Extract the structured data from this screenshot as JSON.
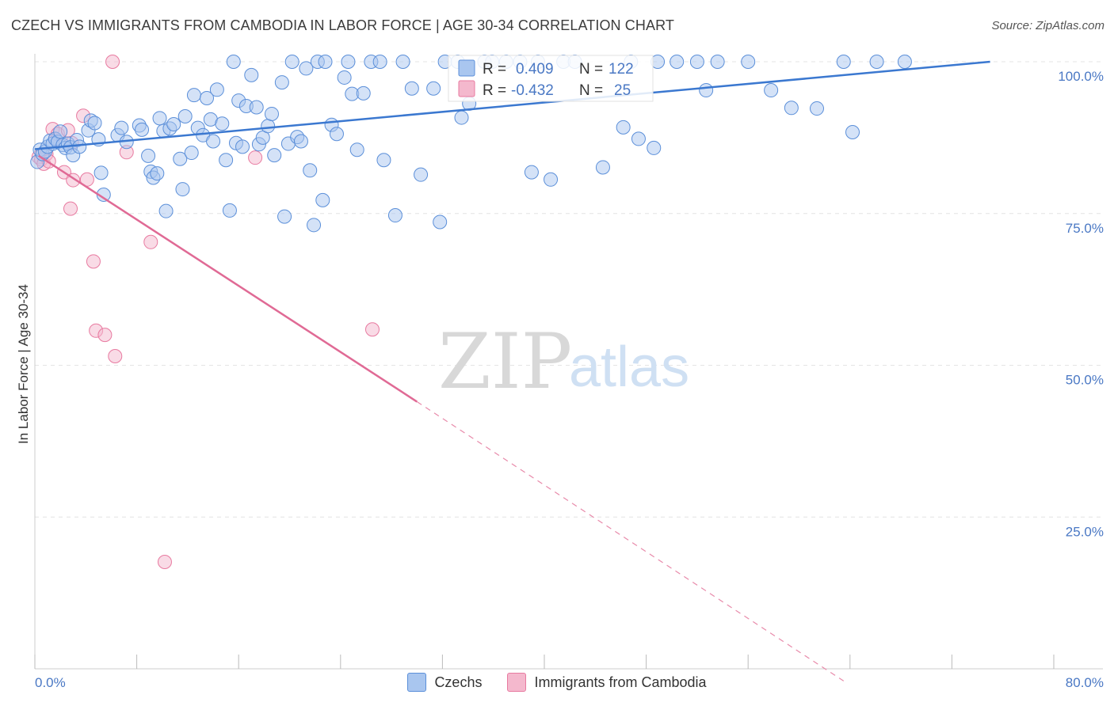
{
  "title": "CZECH VS IMMIGRANTS FROM CAMBODIA IN LABOR FORCE | AGE 30-34 CORRELATION CHART",
  "source": "Source: ZipAtlas.com",
  "watermark": {
    "zip": "ZIP",
    "atlas": "atlas"
  },
  "colors": {
    "blue": "#5b8fd9",
    "blue_fill": "#a9c6ef",
    "pink": "#e87aa0",
    "pink_fill": "#f4b8cd",
    "axis_text": "#4a78c4"
  },
  "legend_box": {
    "rows": [
      {
        "r_label": "R =",
        "r_value": "0.409",
        "n_label": "N =",
        "n_value": "122"
      },
      {
        "r_label": "R =",
        "r_value": "-0.432",
        "n_label": "N =",
        "n_value": "25"
      }
    ]
  },
  "bottom_legend": [
    {
      "label": "Czechs"
    },
    {
      "label": "Immigrants from Cambodia"
    }
  ],
  "chart_data": {
    "type": "scatter",
    "title": "CZECH VS IMMIGRANTS FROM CAMBODIA IN LABOR FORCE | AGE 30-34 CORRELATION CHART",
    "xlabel": "",
    "ylabel": "In Labor Force | Age 30-34",
    "xlim": [
      0,
      80
    ],
    "ylim": [
      0,
      102
    ],
    "x_tick_labels": [
      "0.0%",
      "80.0%"
    ],
    "y_ticks": [
      25,
      50,
      75,
      100
    ],
    "y_tick_labels": [
      "25.0%",
      "50.0%",
      "75.0%",
      "100.0%"
    ],
    "series": [
      {
        "name": "Czechs",
        "color": "#5b8fd9",
        "r": 0.409,
        "n": 122,
        "trendline": {
          "x": [
            0,
            75
          ],
          "y": [
            85.6,
            100
          ],
          "style": "solid"
        },
        "points": [
          [
            0.2,
            83.5
          ],
          [
            0.4,
            85.5
          ],
          [
            0.6,
            84.8
          ],
          [
            0.8,
            85.2
          ],
          [
            1.0,
            86.0
          ],
          [
            1.2,
            87.0
          ],
          [
            1.4,
            86.5
          ],
          [
            1.6,
            87.3
          ],
          [
            1.8,
            86.8
          ],
          [
            2.0,
            88.5
          ],
          [
            2.2,
            86.3
          ],
          [
            2.4,
            85.8
          ],
          [
            2.6,
            86.5
          ],
          [
            2.8,
            85.9
          ],
          [
            3.0,
            84.6
          ],
          [
            3.3,
            87.1
          ],
          [
            3.5,
            86.0
          ],
          [
            4.2,
            88.7
          ],
          [
            4.4,
            90.3
          ],
          [
            4.7,
            89.9
          ],
          [
            5.0,
            87.2
          ],
          [
            5.2,
            81.7
          ],
          [
            5.4,
            78.1
          ],
          [
            6.5,
            87.9
          ],
          [
            6.8,
            89.1
          ],
          [
            7.2,
            86.8
          ],
          [
            8.2,
            89.5
          ],
          [
            8.4,
            88.8
          ],
          [
            8.9,
            84.5
          ],
          [
            9.1,
            81.9
          ],
          [
            9.3,
            80.9
          ],
          [
            9.6,
            81.6
          ],
          [
            9.8,
            90.7
          ],
          [
            10.1,
            88.6
          ],
          [
            10.3,
            75.4
          ],
          [
            10.6,
            89.0
          ],
          [
            10.9,
            89.7
          ],
          [
            11.4,
            84.0
          ],
          [
            11.6,
            79.0
          ],
          [
            11.8,
            91.0
          ],
          [
            12.3,
            85.0
          ],
          [
            12.5,
            94.5
          ],
          [
            12.8,
            89.1
          ],
          [
            13.2,
            87.9
          ],
          [
            13.5,
            94.0
          ],
          [
            13.8,
            90.5
          ],
          [
            14.0,
            86.9
          ],
          [
            14.3,
            95.4
          ],
          [
            14.7,
            89.8
          ],
          [
            15.0,
            83.8
          ],
          [
            15.3,
            75.5
          ],
          [
            15.6,
            100.0
          ],
          [
            15.8,
            86.6
          ],
          [
            16.0,
            93.6
          ],
          [
            16.3,
            86.0
          ],
          [
            16.6,
            92.7
          ],
          [
            17.0,
            97.8
          ],
          [
            17.4,
            92.5
          ],
          [
            17.6,
            86.4
          ],
          [
            17.9,
            87.5
          ],
          [
            18.3,
            89.4
          ],
          [
            18.6,
            91.4
          ],
          [
            18.8,
            84.6
          ],
          [
            19.4,
            96.6
          ],
          [
            19.6,
            74.5
          ],
          [
            19.9,
            86.5
          ],
          [
            20.2,
            100.0
          ],
          [
            20.6,
            87.6
          ],
          [
            20.9,
            86.9
          ],
          [
            21.3,
            98.9
          ],
          [
            21.6,
            82.1
          ],
          [
            21.9,
            73.1
          ],
          [
            22.2,
            100.0
          ],
          [
            22.6,
            77.2
          ],
          [
            22.8,
            100.0
          ],
          [
            23.3,
            89.6
          ],
          [
            23.7,
            88.1
          ],
          [
            24.3,
            97.4
          ],
          [
            24.6,
            100.0
          ],
          [
            24.9,
            94.7
          ],
          [
            25.3,
            85.5
          ],
          [
            25.8,
            94.8
          ],
          [
            26.4,
            100.0
          ],
          [
            27.1,
            100.0
          ],
          [
            27.4,
            83.8
          ],
          [
            28.3,
            74.7
          ],
          [
            28.9,
            100.0
          ],
          [
            29.6,
            95.6
          ],
          [
            30.3,
            81.4
          ],
          [
            31.3,
            95.6
          ],
          [
            31.8,
            73.6
          ],
          [
            32.2,
            100.0
          ],
          [
            33.2,
            100.0
          ],
          [
            33.5,
            90.8
          ],
          [
            34.1,
            93.1
          ],
          [
            35.3,
            100.0
          ],
          [
            35.9,
            100.0
          ],
          [
            37.0,
            100.0
          ],
          [
            38.1,
            100.0
          ],
          [
            39.0,
            81.8
          ],
          [
            39.5,
            100.0
          ],
          [
            40.5,
            80.6
          ],
          [
            41.5,
            100.0
          ],
          [
            42.4,
            100.0
          ],
          [
            44.6,
            82.6
          ],
          [
            46.2,
            89.2
          ],
          [
            46.8,
            100.0
          ],
          [
            47.4,
            87.3
          ],
          [
            48.6,
            85.8
          ],
          [
            48.9,
            100.0
          ],
          [
            50.4,
            100.0
          ],
          [
            52.0,
            100.0
          ],
          [
            52.7,
            95.3
          ],
          [
            53.6,
            100.0
          ],
          [
            56.0,
            100.0
          ],
          [
            57.8,
            95.3
          ],
          [
            59.4,
            92.4
          ],
          [
            61.4,
            92.3
          ],
          [
            63.5,
            100.0
          ],
          [
            64.2,
            88.4
          ],
          [
            66.1,
            100.0
          ],
          [
            68.3,
            100.0
          ]
        ]
      },
      {
        "name": "Immigrants from Cambodia",
        "color": "#e87aa0",
        "r": -0.432,
        "n": 25,
        "trendline": {
          "x": [
            0.3,
            30
          ],
          "y": [
            84.5,
            44
          ],
          "style": "solid",
          "extended": {
            "x": [
              30,
              63.5
            ],
            "y": [
              44,
              -2
            ]
          }
        },
        "points": [
          [
            0.3,
            84.3
          ],
          [
            0.5,
            83.9
          ],
          [
            0.7,
            83.2
          ],
          [
            0.9,
            84.8
          ],
          [
            1.1,
            83.6
          ],
          [
            1.4,
            88.9
          ],
          [
            1.6,
            87.2
          ],
          [
            1.8,
            88.1
          ],
          [
            2.3,
            81.8
          ],
          [
            2.6,
            88.7
          ],
          [
            2.8,
            75.8
          ],
          [
            2.9,
            86.6
          ],
          [
            3.0,
            80.5
          ],
          [
            3.8,
            91.1
          ],
          [
            4.1,
            80.6
          ],
          [
            4.6,
            67.1
          ],
          [
            4.8,
            55.7
          ],
          [
            5.5,
            55.0
          ],
          [
            6.1,
            100.0
          ],
          [
            6.3,
            51.5
          ],
          [
            7.2,
            85.1
          ],
          [
            9.1,
            70.3
          ],
          [
            10.2,
            17.6
          ],
          [
            17.3,
            84.2
          ],
          [
            26.5,
            55.9
          ]
        ]
      }
    ]
  }
}
